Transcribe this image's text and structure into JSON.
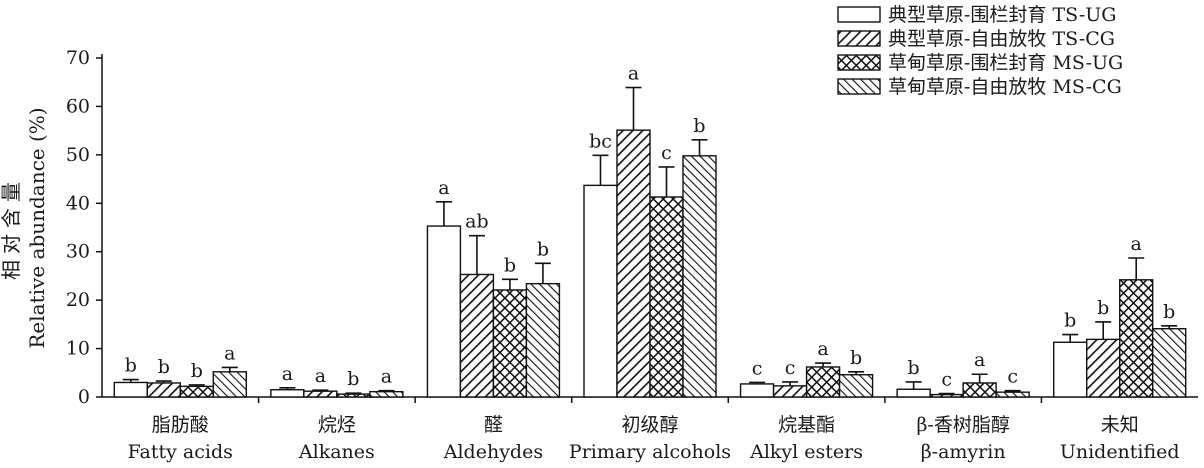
{
  "chart_data": {
    "type": "bar",
    "ylabel_cn": "相对含量",
    "ylabel_en": "Relative abundance (%)",
    "ylim": [
      0,
      70
    ],
    "yticks": [
      0,
      10,
      20,
      30,
      40,
      50,
      60,
      70
    ],
    "categories": [
      {
        "cn": "脂肪酸",
        "en": "Fatty acids"
      },
      {
        "cn": "烷烃",
        "en": "Alkanes"
      },
      {
        "cn": "醛",
        "en": "Aldehydes"
      },
      {
        "cn": "初级醇",
        "en": "Primary alcohols"
      },
      {
        "cn": "烷基酯",
        "en": "Alkyl esters"
      },
      {
        "cn": "β-香树脂醇",
        "en": "β-amyrin"
      },
      {
        "cn": "未知",
        "en": "Unidentified"
      }
    ],
    "series": [
      {
        "name": "典型草原-围栏封育 TS-UG",
        "pattern": "solid",
        "values": [
          3.0,
          1.5,
          35.3,
          43.7,
          2.7,
          1.6,
          11.3
        ],
        "errors": [
          0.6,
          0.4,
          5.0,
          6.2,
          0.3,
          1.5,
          1.6
        ],
        "labels": [
          "b",
          "a",
          "a",
          "bc",
          "c",
          "b",
          "b"
        ]
      },
      {
        "name": "典型草原-自由放牧 TS-CG",
        "pattern": "diagonal",
        "values": [
          2.9,
          1.2,
          25.3,
          55.1,
          2.3,
          0.5,
          11.9
        ],
        "errors": [
          0.4,
          0.2,
          8.0,
          8.8,
          0.8,
          0.2,
          3.6
        ],
        "labels": [
          "b",
          "a",
          "ab",
          "a",
          "c",
          "c",
          "b"
        ]
      },
      {
        "name": "草甸草原-围栏封育 MS-UG",
        "pattern": "crosshatch",
        "values": [
          2.2,
          0.6,
          22.1,
          41.3,
          6.2,
          2.9,
          24.2
        ],
        "errors": [
          0.3,
          0.2,
          2.2,
          6.2,
          0.8,
          1.8,
          4.5
        ],
        "labels": [
          "b",
          "b",
          "b",
          "c",
          "a",
          "a",
          "a"
        ]
      },
      {
        "name": "草甸草原-自由放牧 MS-CG",
        "pattern": "backdiagonal",
        "values": [
          5.2,
          1.1,
          23.4,
          49.8,
          4.6,
          1.0,
          14.1
        ],
        "errors": [
          0.9,
          0.2,
          4.2,
          3.3,
          0.6,
          0.3,
          0.6
        ],
        "labels": [
          "a",
          "a",
          "b",
          "b",
          "b",
          "c",
          "b"
        ]
      }
    ],
    "grid": false,
    "legend_position": "top-right"
  }
}
